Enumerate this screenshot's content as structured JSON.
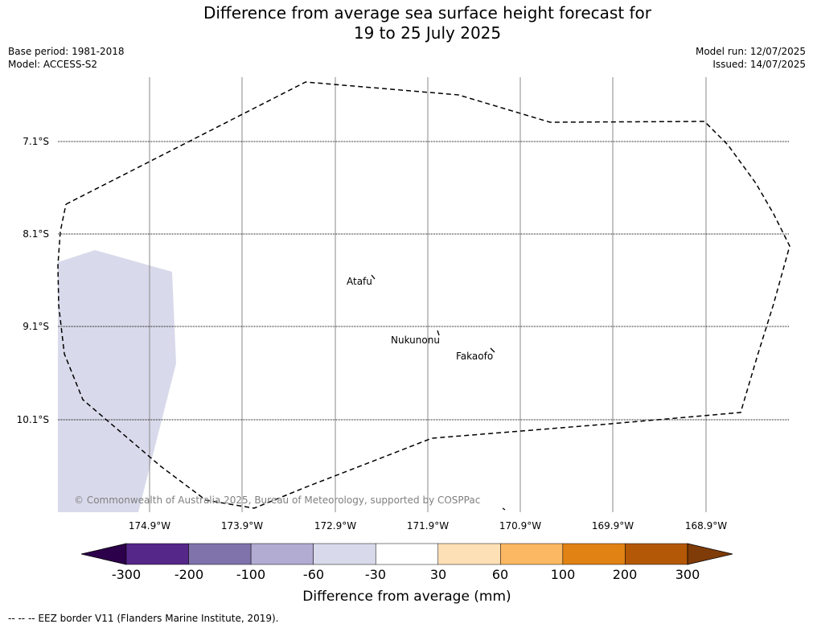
{
  "title": {
    "line1": "Difference from average sea surface height forecast for",
    "line2": "19 to 25 July 2025"
  },
  "info": {
    "base_period": "Base period: 1981-2018",
    "model": "Model: ACCESS-S2",
    "model_run": "Model run: 12/07/2025",
    "issued": "Issued: 14/07/2025"
  },
  "map": {
    "latitudes": [
      "7.1°S",
      "8.1°S",
      "9.1°S",
      "10.1°S"
    ],
    "longitudes": [
      "174.9°W",
      "173.9°W",
      "172.9°W",
      "171.9°W",
      "170.9°W",
      "169.9°W",
      "168.9°W"
    ],
    "places": [
      "Atafu",
      "Nukunonu",
      "Fakaofo"
    ],
    "credit": "© Commonwealth of Australia 2025, Bureau of Meteorology, supported by COSPPac"
  },
  "colorbar": {
    "title": "Difference from average (mm)",
    "ticks": [
      "-300",
      "-200",
      "-100",
      "-60",
      "-30",
      "30",
      "60",
      "100",
      "200",
      "300"
    ],
    "colors": [
      "#2d004b",
      "#542788",
      "#8073ac",
      "#b2abd2",
      "#d8daeb",
      "#ffffff",
      "#fee0b6",
      "#fdb863",
      "#e08214",
      "#b35806",
      "#7f3b08"
    ]
  },
  "footer": "--  --  -- EEZ border V11 (Flanders Marine Institute, 2019)."
}
